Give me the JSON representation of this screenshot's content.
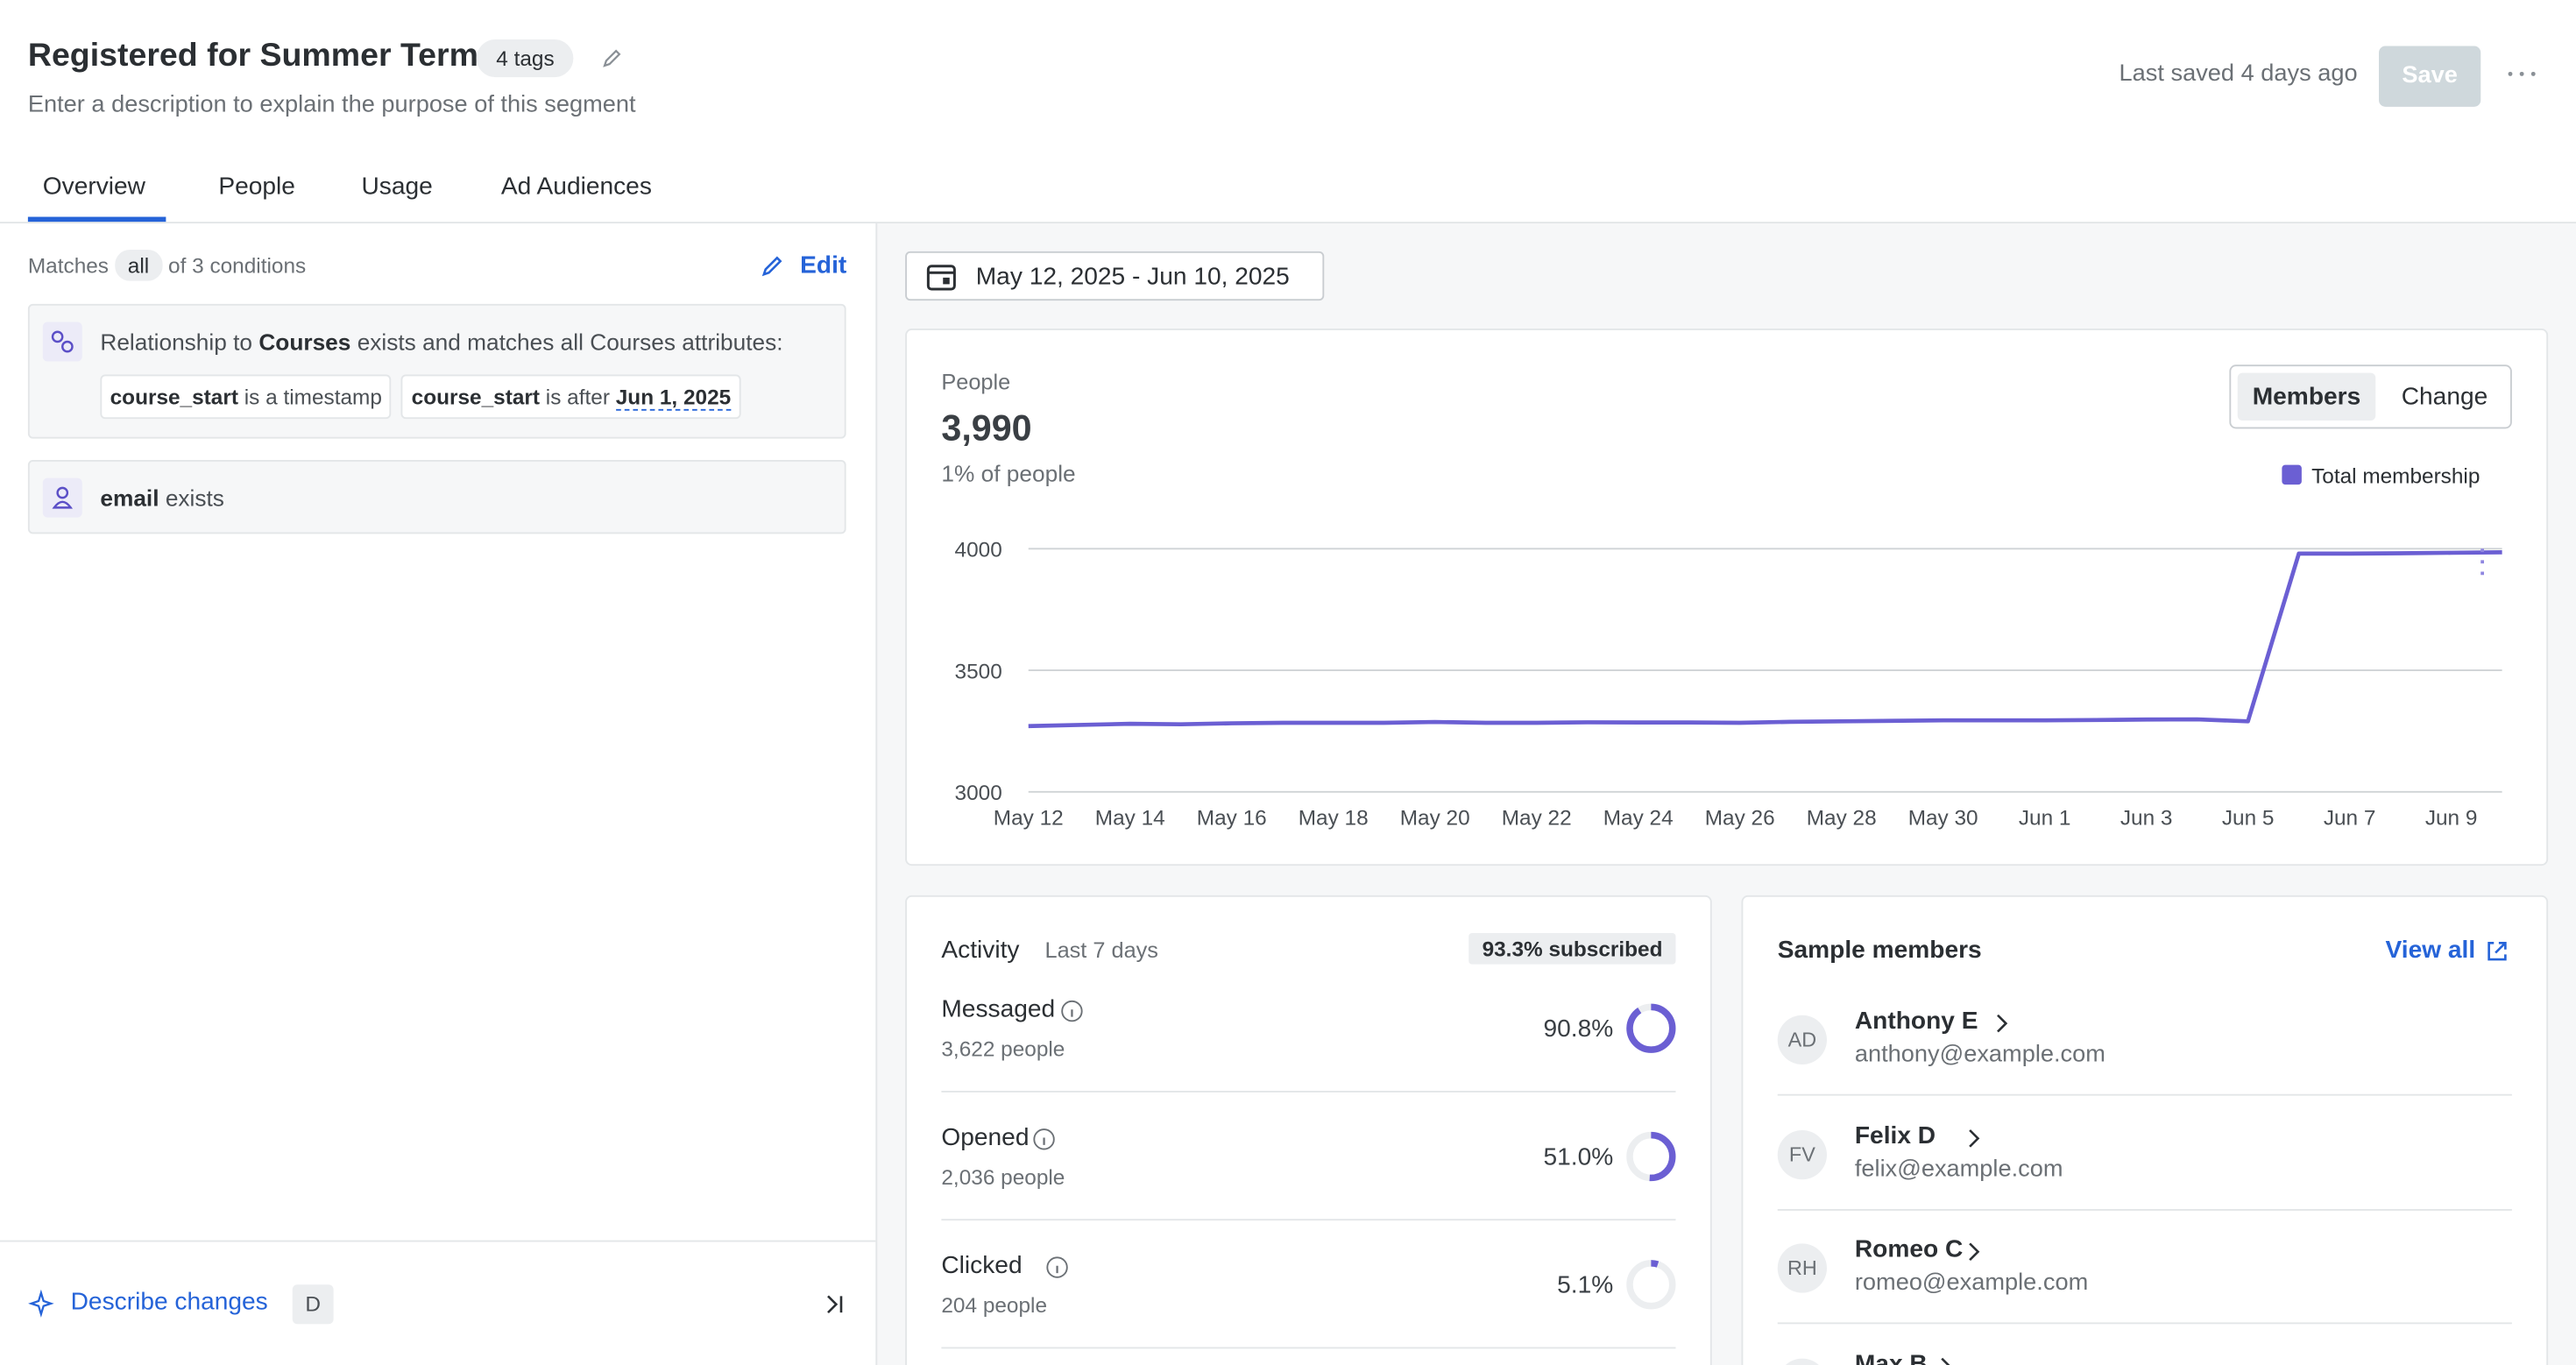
{
  "header": {
    "title": "Registered for Summer Term",
    "tags": "4 tags",
    "description": "Enter a description to explain the purpose of this segment",
    "last_saved": "Last saved 4 days ago",
    "save": "Save"
  },
  "tabs": [
    "Overview",
    "People",
    "Usage",
    "Ad Audiences"
  ],
  "conditions": {
    "prefix": "Matches",
    "mode": "all",
    "suffix": "of 3 conditions",
    "edit": "Edit",
    "items": [
      {
        "parts": [
          "Relationship to",
          "Courses",
          "exists and matches all Courses attributes:"
        ],
        "chips": [
          [
            "course_start",
            "is a timestamp"
          ],
          [
            "course_start",
            "is after",
            "Jun 1, 2025"
          ]
        ]
      },
      {
        "parts": [
          "email",
          "exists"
        ]
      }
    ]
  },
  "footer": {
    "describe": "Describe changes",
    "key": "D"
  },
  "date_range": "May 12, 2025 - Jun 10, 2025",
  "people": {
    "label": "People",
    "count": "3,990",
    "share": "1% of people",
    "toggle": [
      "Members",
      "Change"
    ]
  },
  "chart_data": {
    "type": "line",
    "categories": [
      "May 12",
      null,
      "May 14",
      null,
      "May 16",
      null,
      "May 18",
      null,
      "May 20",
      null,
      "May 22",
      null,
      "May 24",
      null,
      "May 26",
      null,
      "May 28",
      null,
      "May 30",
      null,
      "Jun 1",
      null,
      "Jun 3",
      null,
      "Jun 5",
      null,
      "Jun 7",
      null,
      "Jun 9",
      null
    ],
    "series": [
      {
        "name": "Total membership",
        "color": "#6b5fd3",
        "values": [
          3270,
          3275,
          3280,
          3278,
          3282,
          3284,
          3284,
          3284,
          3287,
          3284,
          3284,
          3286,
          3285,
          3285,
          3284,
          3288,
          3290,
          3292,
          3294,
          3294,
          3294,
          3295,
          3297,
          3298,
          3290,
          3980,
          3980,
          3981,
          3983,
          3985
        ]
      }
    ],
    "ylim": [
      3000,
      4000
    ],
    "yticks": [
      3000,
      3500,
      4000
    ],
    "grid": true,
    "legend": "top-right"
  },
  "activity": {
    "title": "Activity",
    "period": "Last 7 days",
    "badge": "93.3% subscribed",
    "rows": [
      {
        "name": "Messaged",
        "people": "3,622 people",
        "value": 90.8,
        "value_label": "90.8%"
      },
      {
        "name": "Opened",
        "people": "2,036 people",
        "value": 51.0,
        "value_label": "51.0%"
      },
      {
        "name": "Clicked",
        "people": "204 people",
        "value": 5.1,
        "value_label": "5.1%"
      }
    ]
  },
  "members": {
    "title": "Sample members",
    "view_all": "View all",
    "list": [
      {
        "initials": "AD",
        "name": "Anthony E",
        "email": "anthony@example.com"
      },
      {
        "initials": "FV",
        "name": "Felix D",
        "email": "felix@example.com"
      },
      {
        "initials": "RH",
        "name": "Romeo C",
        "email": "romeo@example.com"
      },
      {
        "name": "Max B"
      }
    ]
  }
}
